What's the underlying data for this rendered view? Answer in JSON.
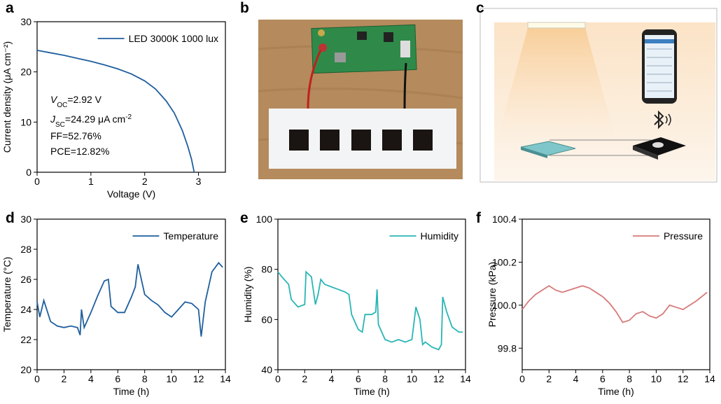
{
  "panel_labels": [
    "a",
    "b",
    "c",
    "d",
    "e",
    "f"
  ],
  "chart_data": [
    {
      "type": "line",
      "x_label": "Voltage (V)",
      "y_label": "Current density (μA cm⁻²)",
      "xlim": [
        0,
        3.5
      ],
      "xticks": [
        0,
        1,
        2,
        3
      ],
      "ylim": [
        0,
        30
      ],
      "yticks": [
        0,
        10,
        20,
        30
      ],
      "legend": "upper right",
      "x": [
        0,
        0.25,
        0.5,
        0.75,
        1.0,
        1.25,
        1.5,
        1.75,
        2.0,
        2.2,
        2.4,
        2.55,
        2.7,
        2.8,
        2.87,
        2.92
      ],
      "series": [
        {
          "name": "LED 3000K 1000 lux",
          "color": "#1f5f9e",
          "values": [
            24.29,
            23.8,
            23.3,
            22.7,
            22.1,
            21.4,
            20.6,
            19.6,
            18.2,
            16.6,
            14.2,
            11.8,
            8.3,
            5.2,
            2.6,
            0
          ]
        }
      ],
      "annotations": [
        [
          {
            "text": "V",
            "style": "italic"
          },
          {
            "text": "OC",
            "style": "sub"
          },
          {
            "text": "=2.92 V"
          }
        ],
        [
          {
            "text": "J",
            "style": "italic"
          },
          {
            "text": "SC",
            "style": "sub"
          },
          {
            "text": "=24.29 μA cm"
          },
          {
            "text": "-2",
            "style": "sup"
          }
        ],
        [
          {
            "text": "FF=52.76%"
          }
        ],
        [
          {
            "text": "PCE=12.82%"
          }
        ]
      ]
    },
    {
      "type": "line",
      "x_label": "Time (h)",
      "y_label": "Temperature (°C)",
      "xlim": [
        0,
        14
      ],
      "xticks": [
        0,
        2,
        4,
        6,
        8,
        10,
        12,
        14
      ],
      "ylim": [
        20,
        30
      ],
      "yticks": [
        20,
        22,
        24,
        26,
        28,
        30
      ],
      "legend": "upper right",
      "x": [
        0,
        0.2,
        0.5,
        1,
        1.5,
        2,
        2.5,
        3,
        3.2,
        3.3,
        3.5,
        4,
        4.5,
        5,
        5.3,
        5.5,
        6,
        6.5,
        7,
        7.3,
        7.5,
        8,
        8.5,
        9,
        9.5,
        10,
        10.5,
        11,
        11.5,
        12,
        12.2,
        12.5,
        13,
        13.5,
        13.8
      ],
      "series": [
        {
          "name": "Temperature",
          "color": "#1f5f9e",
          "values": [
            24.5,
            23.5,
            24.6,
            23.2,
            22.9,
            22.8,
            22.9,
            22.8,
            22.3,
            24,
            22.8,
            23.8,
            24.9,
            25.9,
            26,
            24.2,
            23.8,
            23.8,
            24.8,
            25.5,
            27,
            25,
            24.6,
            24.3,
            23.8,
            23.5,
            24,
            24.5,
            24.4,
            24,
            22.2,
            24.5,
            26.5,
            27.1,
            26.8
          ]
        }
      ]
    },
    {
      "type": "line",
      "x_label": "Time (h)",
      "y_label": "Humidity (%)",
      "xlim": [
        0,
        14
      ],
      "xticks": [
        0,
        2,
        4,
        6,
        8,
        10,
        12,
        14
      ],
      "ylim": [
        40,
        100
      ],
      "yticks": [
        40,
        60,
        80,
        100
      ],
      "legend": "upper right",
      "x": [
        0,
        0.3,
        0.8,
        1,
        1.5,
        2,
        2.1,
        2.5,
        2.8,
        3,
        3.2,
        3.5,
        4,
        4.5,
        5,
        5.3,
        5.5,
        6,
        6.3,
        6.5,
        7,
        7.3,
        7.4,
        7.5,
        8,
        8.5,
        9,
        9.5,
        10,
        10.3,
        10.6,
        10.8,
        11,
        11.5,
        12,
        12.2,
        12.3,
        12.6,
        13,
        13.5,
        13.8
      ],
      "series": [
        {
          "name": "Humidity",
          "color": "#2ab5b5",
          "values": [
            79,
            77,
            74,
            68,
            65,
            66,
            79,
            77,
            66,
            70,
            76,
            74,
            73,
            72,
            71,
            70,
            62,
            56,
            55,
            62,
            62,
            63,
            72,
            58,
            52,
            51,
            52,
            51,
            52,
            65,
            60,
            50,
            51,
            49,
            48,
            50,
            69,
            63,
            57,
            55,
            55
          ]
        }
      ]
    },
    {
      "type": "line",
      "x_label": "Time (h)",
      "y_label": "Pressure (kPa)",
      "xlim": [
        0,
        14
      ],
      "xticks": [
        0,
        2,
        4,
        6,
        8,
        10,
        12,
        14
      ],
      "ylim": [
        99.7,
        100.4
      ],
      "yticks": [
        99.8,
        {
          "value": 100,
          "label": "100.0"
        },
        100.2,
        100.4
      ],
      "legend": "upper right",
      "x": [
        0,
        0.5,
        1,
        1.5,
        2,
        2.5,
        3,
        3.5,
        4,
        4.5,
        5,
        5.5,
        6,
        6.5,
        7,
        7.5,
        8,
        8.5,
        9,
        9.5,
        10,
        10.5,
        11,
        11.5,
        12,
        12.5,
        13,
        13.8
      ],
      "series": [
        {
          "name": "Pressure",
          "color": "#d77a7a",
          "values": [
            99.98,
            100.02,
            100.05,
            100.07,
            100.09,
            100.07,
            100.06,
            100.07,
            100.08,
            100.09,
            100.08,
            100.06,
            100.04,
            100.01,
            99.97,
            99.92,
            99.93,
            99.96,
            99.97,
            99.95,
            99.94,
            99.96,
            100.0,
            99.99,
            99.98,
            100.0,
            100.02,
            100.06
          ]
        }
      ]
    }
  ]
}
